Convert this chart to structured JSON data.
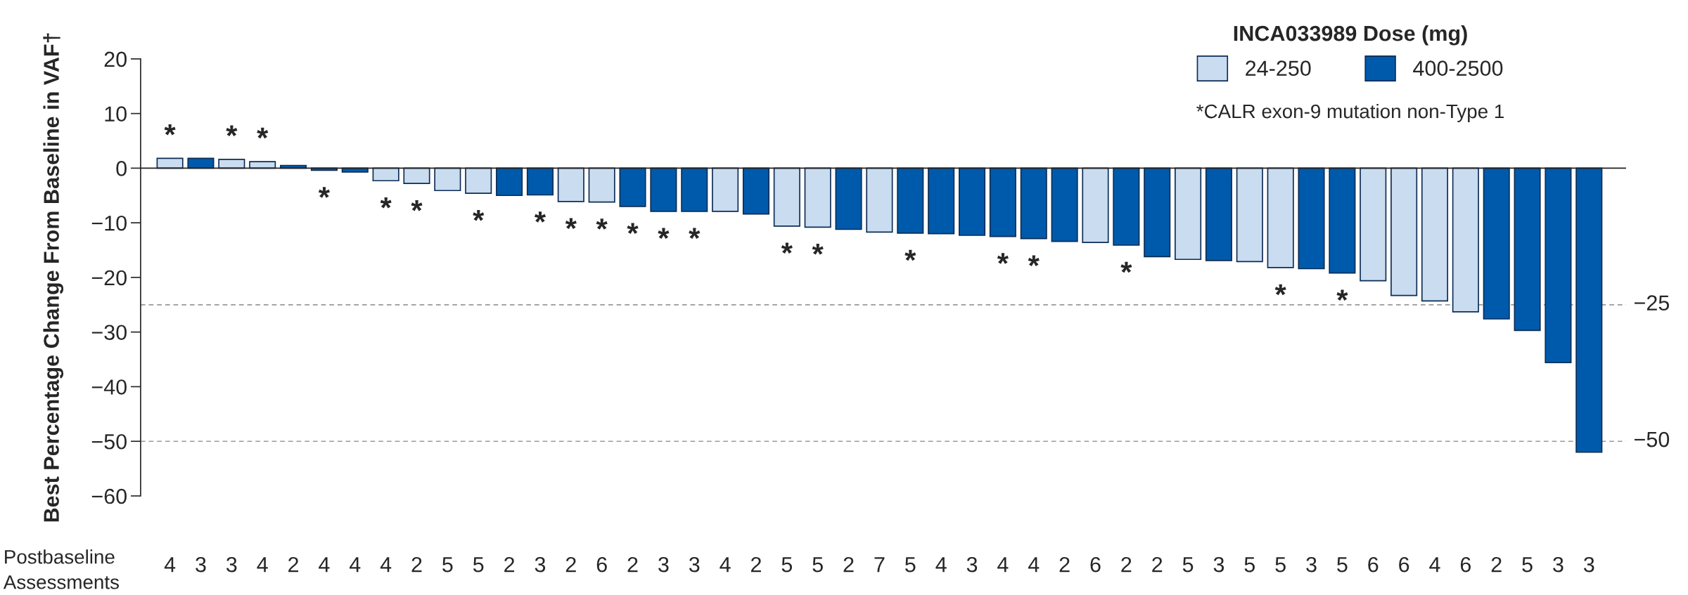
{
  "chart_data": {
    "type": "bar",
    "ylabel": "Best Percentage Change From Baseline in VAF†",
    "xlabel": "Postbaseline Assessments",
    "legend_title": "INCA033989 Dose (mg)",
    "categories": [
      "4",
      "3",
      "3",
      "4",
      "2",
      "4",
      "4",
      "4",
      "2",
      "5",
      "5",
      "2",
      "3",
      "2",
      "6",
      "2",
      "3",
      "3",
      "4",
      "2",
      "5",
      "5",
      "2",
      "7",
      "5",
      "4",
      "3",
      "4",
      "4",
      "2",
      "6",
      "2",
      "2",
      "5",
      "3",
      "5",
      "5",
      "3",
      "5",
      "6",
      "6",
      "4",
      "6",
      "2",
      "5",
      "3",
      "3"
    ],
    "series": [
      {
        "name": "24-250",
        "color": "#c9dcf0",
        "values": [
          1.8,
          null,
          1.6,
          1.2,
          null,
          null,
          null,
          -2.3,
          -2.8,
          -4.1,
          -4.6,
          null,
          null,
          -6.1,
          -6.2,
          null,
          null,
          null,
          -7.9,
          null,
          -10.6,
          -10.8,
          null,
          -11.7,
          null,
          null,
          null,
          null,
          null,
          null,
          -13.6,
          null,
          null,
          -16.7,
          null,
          -17.1,
          -18.2,
          null,
          null,
          -20.6,
          -23.3,
          -24.3,
          -26.3,
          null,
          null,
          null,
          null
        ]
      },
      {
        "name": "400-2500",
        "color": "#005aab",
        "values": [
          null,
          1.8,
          null,
          null,
          0.5,
          -0.4,
          -0.7,
          null,
          null,
          null,
          null,
          -5.0,
          -4.9,
          null,
          null,
          -7.0,
          -7.9,
          -7.9,
          null,
          -8.4,
          null,
          null,
          -11.2,
          null,
          -11.9,
          -12.0,
          -12.3,
          -12.5,
          -12.9,
          -13.4,
          null,
          -14.1,
          -16.2,
          null,
          -16.9,
          null,
          null,
          -18.4,
          -19.2,
          null,
          null,
          null,
          null,
          -27.6,
          -29.7,
          -35.6,
          -52.0
        ]
      }
    ],
    "ylim": [
      -60,
      20
    ],
    "yticks": [
      {
        "value": -60,
        "label": "−60"
      },
      {
        "value": -50,
        "label": "−50"
      },
      {
        "value": -40,
        "label": "−40"
      },
      {
        "value": -30,
        "label": "−30"
      },
      {
        "value": -20,
        "label": "−20"
      },
      {
        "value": -10,
        "label": "−10"
      },
      0,
      10,
      20
    ],
    "ref_lines": [
      {
        "axis": "y",
        "value": -25,
        "label": "−25",
        "color": "#999999",
        "line_style": "dashed"
      },
      {
        "axis": "y",
        "value": -50,
        "label": "−50",
        "color": "#999999",
        "line_style": "dashed"
      }
    ],
    "annotations": [
      {
        "text": "*",
        "y": 1.8
      },
      {
        "text": "*",
        "y": 1.6
      },
      {
        "text": "*",
        "y": 1.2
      },
      {
        "text": "*",
        "y": -0.4
      },
      {
        "text": "*",
        "y": -2.3
      },
      {
        "text": "*",
        "y": -2.8
      },
      {
        "text": "*",
        "y": -4.6
      },
      {
        "text": "*",
        "y": -4.9
      },
      {
        "text": "*",
        "y": -6.1
      },
      {
        "text": "*",
        "y": -6.2
      },
      {
        "text": "*",
        "y": -7.0
      },
      {
        "text": "*",
        "y": -7.9
      },
      {
        "text": "*",
        "y": -7.9
      },
      {
        "text": "*",
        "y": -10.6
      },
      {
        "text": "*",
        "y": -10.8
      },
      {
        "text": "*",
        "y": -11.9
      },
      {
        "text": "*",
        "y": -12.5
      },
      {
        "text": "*",
        "y": -12.9
      },
      {
        "text": "*",
        "y": -14.1
      },
      {
        "text": "*",
        "y": -18.2
      },
      {
        "text": "*",
        "y": -19.2
      },
      "*CALR exon-9 mutation non-Type 1"
    ],
    "legend": "top right",
    "grid": false
  }
}
